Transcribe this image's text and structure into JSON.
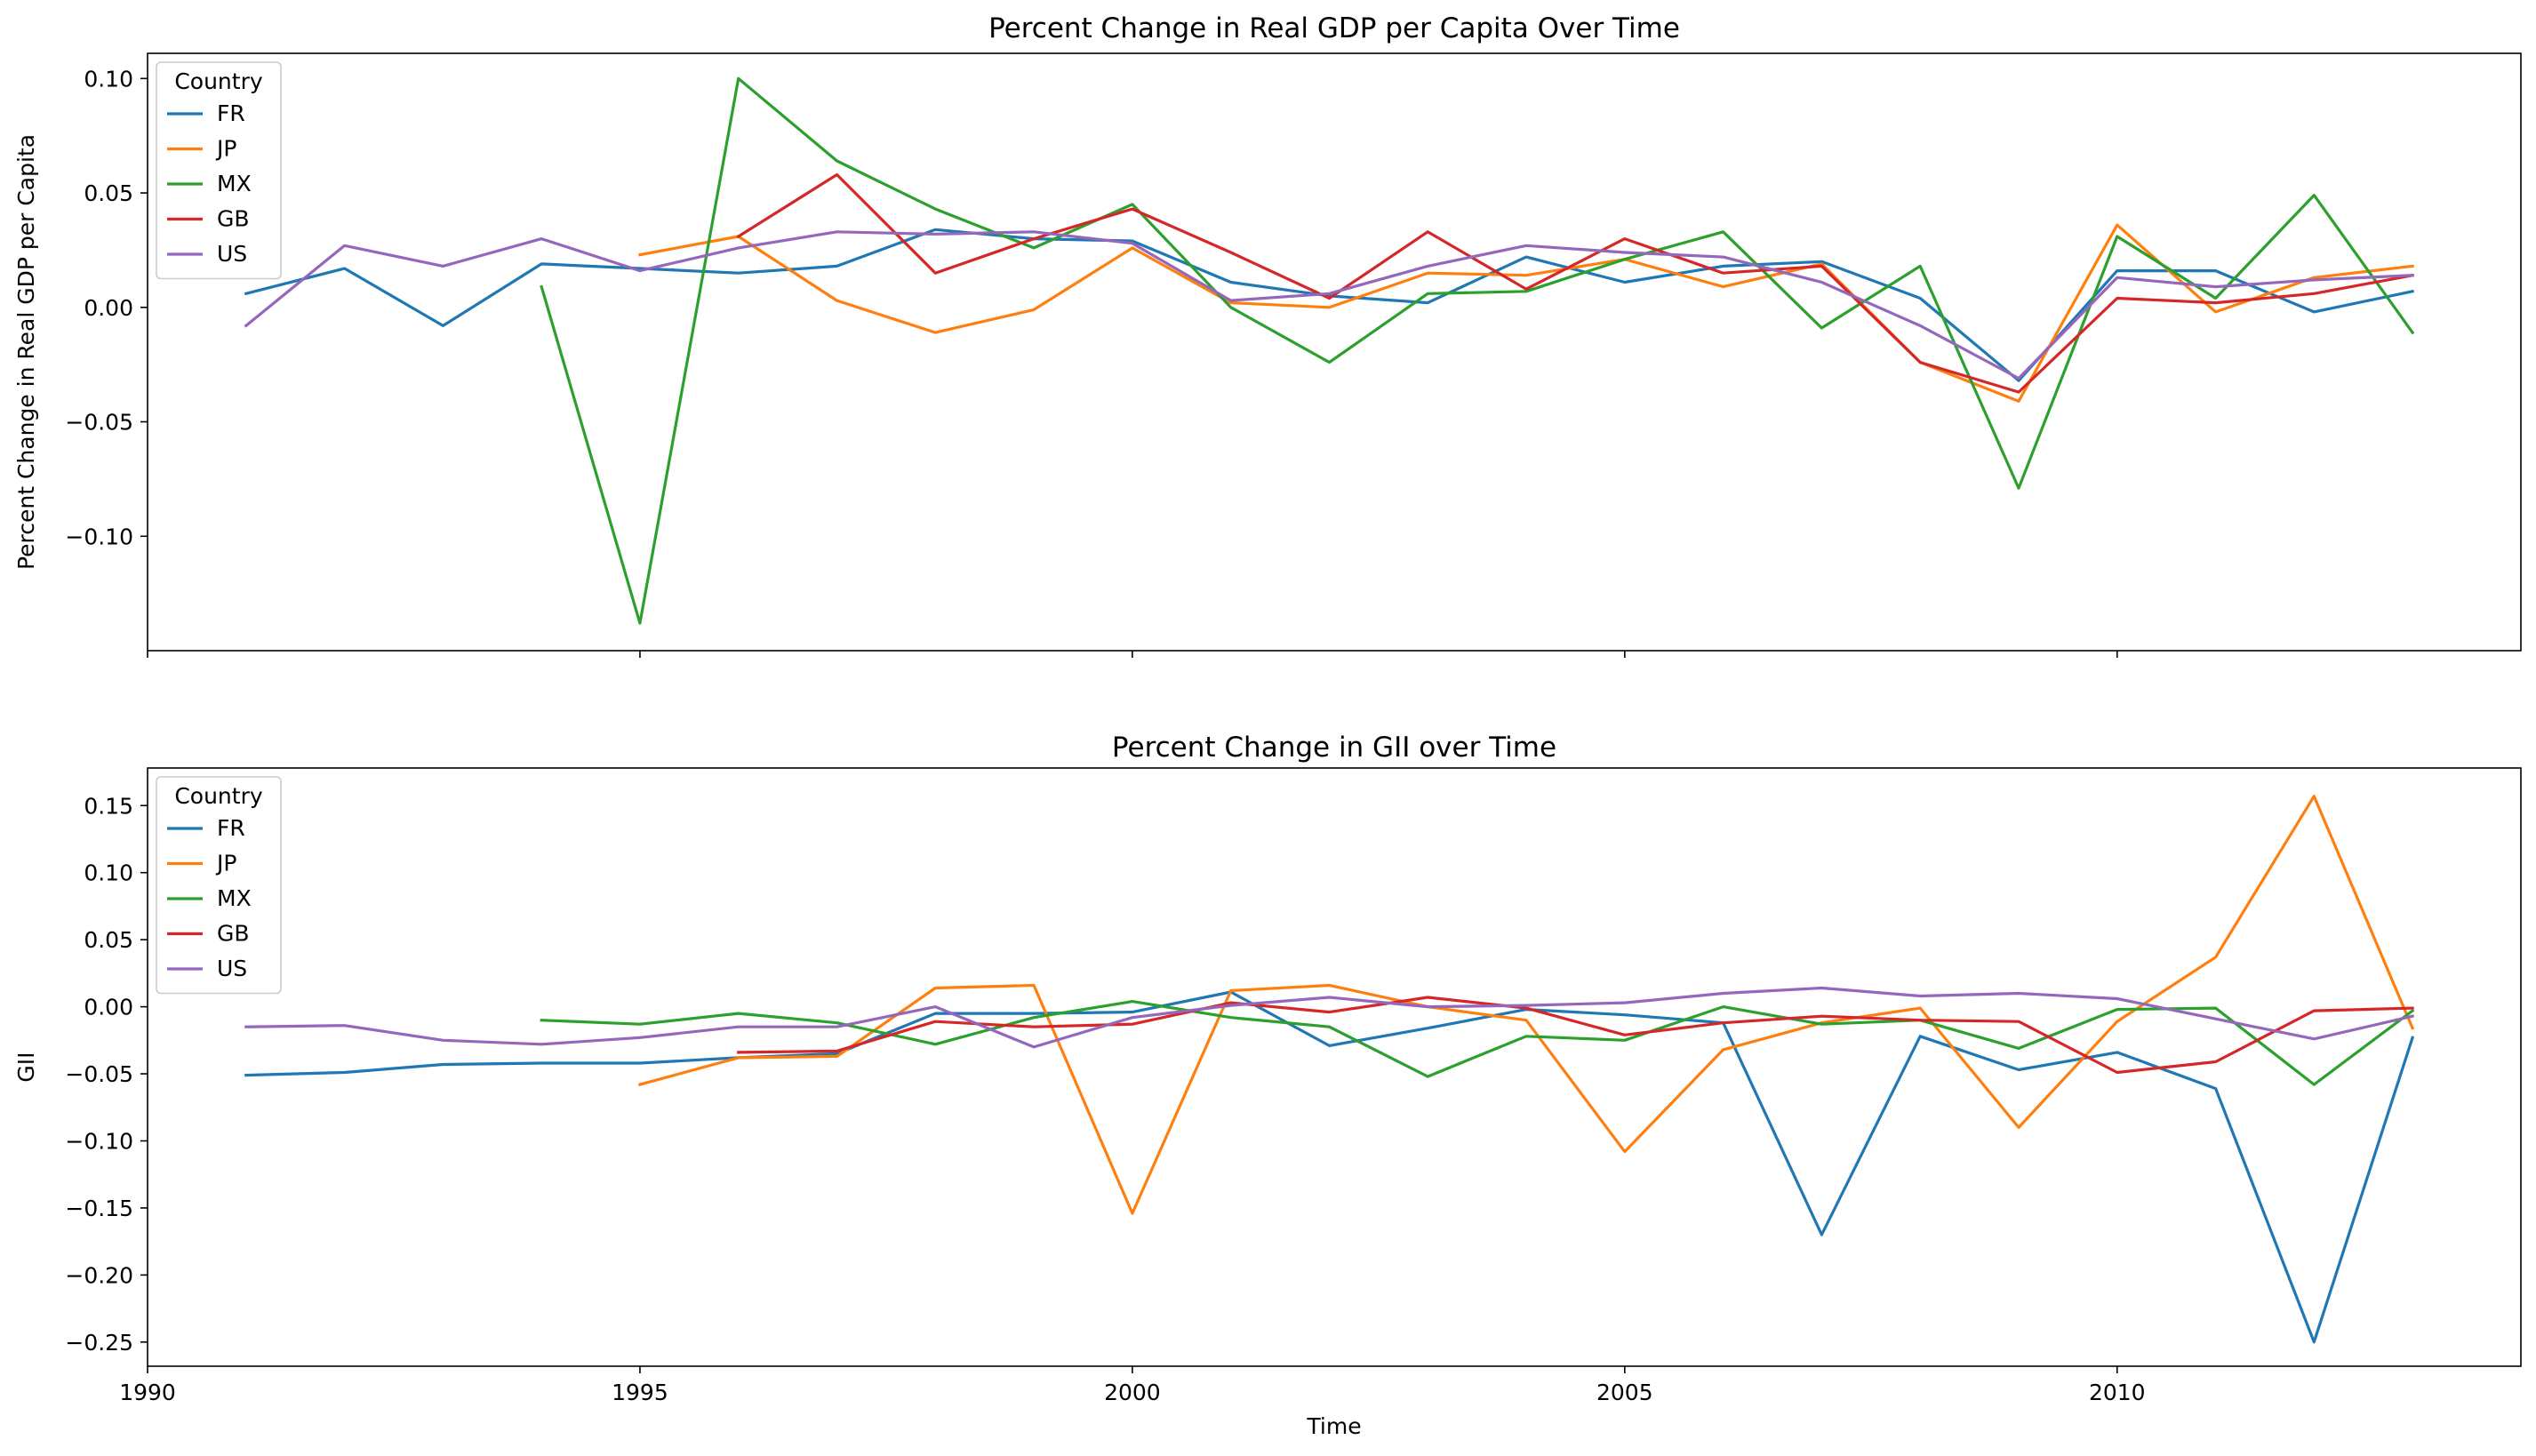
{
  "chart_data": [
    {
      "type": "line",
      "title": "Percent Change in Real GDP per Capita Over Time",
      "xlabel": "",
      "ylabel": "Percent Change in Real GDP per Capita",
      "xlim": [
        1990,
        2014.1
      ],
      "ylim": [
        -0.15,
        0.111
      ],
      "xticks": [
        1990,
        1995,
        2000,
        2005,
        2010
      ],
      "xtick_labels_visible": false,
      "yticks": [
        -0.1,
        -0.05,
        0.0,
        0.05,
        0.1
      ],
      "ytick_labels": [
        "−0.10",
        "−0.05",
        "0.00",
        "0.05",
        "0.10"
      ],
      "grid": false,
      "legend": {
        "title": "Country",
        "placement": "top-left"
      },
      "series": [
        {
          "name": "FR",
          "color": "#1f77b4",
          "x": [
            1991,
            1992,
            1993,
            1994,
            1995,
            1996,
            1997,
            1998,
            1999,
            2000,
            2001,
            2002,
            2003,
            2004,
            2005,
            2006,
            2007,
            2008,
            2009,
            2010,
            2011,
            2012,
            2013
          ],
          "values": [
            0.006,
            0.017,
            -0.008,
            0.019,
            0.017,
            0.015,
            0.018,
            0.034,
            0.03,
            0.029,
            0.011,
            0.005,
            0.002,
            0.022,
            0.011,
            0.018,
            0.02,
            0.004,
            -0.032,
            0.016,
            0.016,
            -0.002,
            0.007
          ]
        },
        {
          "name": "JP",
          "color": "#ff7f0e",
          "x": [
            1995,
            1996,
            1997,
            1998,
            1999,
            2000,
            2001,
            2002,
            2003,
            2004,
            2005,
            2006,
            2007,
            2008,
            2009,
            2010,
            2011,
            2012,
            2013
          ],
          "values": [
            0.023,
            0.031,
            0.003,
            -0.011,
            -0.001,
            0.026,
            0.002,
            0.0,
            0.015,
            0.014,
            0.021,
            0.009,
            0.019,
            -0.024,
            -0.041,
            0.036,
            -0.002,
            0.013,
            0.018
          ]
        },
        {
          "name": "MX",
          "color": "#2ca02c",
          "x": [
            1994,
            1995,
            1996,
            1997,
            1998,
            1999,
            2000,
            2001,
            2002,
            2003,
            2004,
            2005,
            2006,
            2007,
            2008,
            2009,
            2010,
            2011,
            2012,
            2013
          ],
          "values": [
            0.009,
            -0.138,
            0.1,
            0.064,
            0.043,
            0.026,
            0.045,
            0.0,
            -0.024,
            0.006,
            0.007,
            0.021,
            0.033,
            -0.009,
            0.018,
            -0.079,
            0.031,
            0.004,
            0.049,
            -0.011
          ]
        },
        {
          "name": "GB",
          "color": "#d62728",
          "x": [
            1996,
            1997,
            1998,
            1999,
            2000,
            2001,
            2002,
            2003,
            2004,
            2005,
            2006,
            2007,
            2008,
            2009,
            2010,
            2011,
            2012,
            2013
          ],
          "values": [
            0.031,
            0.058,
            0.015,
            0.03,
            0.043,
            0.024,
            0.004,
            0.033,
            0.008,
            0.03,
            0.015,
            0.018,
            -0.024,
            -0.037,
            0.004,
            0.002,
            0.006,
            0.014
          ]
        },
        {
          "name": "US",
          "color": "#9467bd",
          "x": [
            1991,
            1992,
            1993,
            1994,
            1995,
            1996,
            1997,
            1998,
            1999,
            2000,
            2001,
            2002,
            2003,
            2004,
            2005,
            2006,
            2007,
            2008,
            2009,
            2010,
            2011,
            2012,
            2013
          ],
          "values": [
            -0.008,
            0.027,
            0.018,
            0.03,
            0.016,
            0.026,
            0.033,
            0.032,
            0.033,
            0.028,
            0.003,
            0.006,
            0.018,
            0.027,
            0.024,
            0.022,
            0.011,
            -0.008,
            -0.031,
            0.013,
            0.009,
            0.012,
            0.014
          ]
        }
      ]
    },
    {
      "type": "line",
      "title": "Percent Change in GII over Time",
      "xlabel": "Time",
      "ylabel": "GII",
      "xlim": [
        1990,
        2014.1
      ],
      "ylim": [
        -0.268,
        0.178
      ],
      "xticks": [
        1990,
        1995,
        2000,
        2005,
        2010
      ],
      "xtick_labels": [
        "1990",
        "1995",
        "2000",
        "2005",
        "2010"
      ],
      "yticks": [
        -0.25,
        -0.2,
        -0.15,
        -0.1,
        -0.05,
        0.0,
        0.05,
        0.1,
        0.15
      ],
      "ytick_labels": [
        "−0.25",
        "−0.20",
        "−0.15",
        "−0.10",
        "−0.05",
        "0.00",
        "0.05",
        "0.10",
        "0.15"
      ],
      "grid": false,
      "legend": {
        "title": "Country",
        "placement": "top-left"
      },
      "series": [
        {
          "name": "FR",
          "color": "#1f77b4",
          "x": [
            1991,
            1992,
            1993,
            1994,
            1995,
            1996,
            1997,
            1998,
            1999,
            2000,
            2001,
            2002,
            2003,
            2004,
            2005,
            2006,
            2007,
            2008,
            2009,
            2010,
            2011,
            2012,
            2013
          ],
          "values": [
            -0.051,
            -0.049,
            -0.043,
            -0.042,
            -0.042,
            -0.038,
            -0.035,
            -0.005,
            -0.005,
            -0.004,
            0.011,
            -0.029,
            -0.016,
            -0.002,
            -0.006,
            -0.012,
            -0.17,
            -0.022,
            -0.047,
            -0.034,
            -0.061,
            -0.25,
            -0.023
          ]
        },
        {
          "name": "JP",
          "color": "#ff7f0e",
          "x": [
            1995,
            1996,
            1997,
            1998,
            1999,
            2000,
            2001,
            2002,
            2003,
            2004,
            2005,
            2006,
            2007,
            2008,
            2009,
            2010,
            2011,
            2012,
            2013
          ],
          "values": [
            -0.058,
            -0.038,
            -0.037,
            0.014,
            0.016,
            -0.154,
            0.012,
            0.016,
            0.0,
            -0.01,
            -0.108,
            -0.032,
            -0.012,
            -0.001,
            -0.09,
            -0.011,
            0.037,
            0.157,
            -0.016
          ]
        },
        {
          "name": "MX",
          "color": "#2ca02c",
          "x": [
            1994,
            1995,
            1996,
            1997,
            1998,
            1999,
            2000,
            2001,
            2002,
            2003,
            2004,
            2005,
            2006,
            2007,
            2008,
            2009,
            2010,
            2011,
            2012,
            2013
          ],
          "values": [
            -0.01,
            -0.013,
            -0.005,
            -0.012,
            -0.028,
            -0.008,
            0.004,
            -0.008,
            -0.015,
            -0.052,
            -0.022,
            -0.025,
            0.0,
            -0.013,
            -0.01,
            -0.031,
            -0.002,
            -0.001,
            -0.058,
            -0.003
          ]
        },
        {
          "name": "GB",
          "color": "#d62728",
          "x": [
            1996,
            1997,
            1998,
            1999,
            2000,
            2001,
            2002,
            2003,
            2004,
            2005,
            2006,
            2007,
            2008,
            2009,
            2010,
            2011,
            2012,
            2013
          ],
          "values": [
            -0.034,
            -0.033,
            -0.011,
            -0.015,
            -0.013,
            0.003,
            -0.004,
            0.007,
            -0.001,
            -0.021,
            -0.012,
            -0.007,
            -0.01,
            -0.011,
            -0.049,
            -0.041,
            -0.003,
            -0.001
          ]
        },
        {
          "name": "US",
          "color": "#9467bd",
          "x": [
            1991,
            1992,
            1993,
            1994,
            1995,
            1996,
            1997,
            1998,
            1999,
            2000,
            2001,
            2002,
            2003,
            2004,
            2005,
            2006,
            2007,
            2008,
            2009,
            2010,
            2011,
            2012,
            2013
          ],
          "values": [
            -0.015,
            -0.014,
            -0.025,
            -0.028,
            -0.023,
            -0.015,
            -0.015,
            0.0,
            -0.03,
            -0.008,
            0.001,
            0.007,
            0.0,
            0.001,
            0.003,
            0.01,
            0.014,
            0.008,
            0.01,
            0.006,
            -0.009,
            -0.024,
            -0.007
          ]
        }
      ]
    }
  ]
}
